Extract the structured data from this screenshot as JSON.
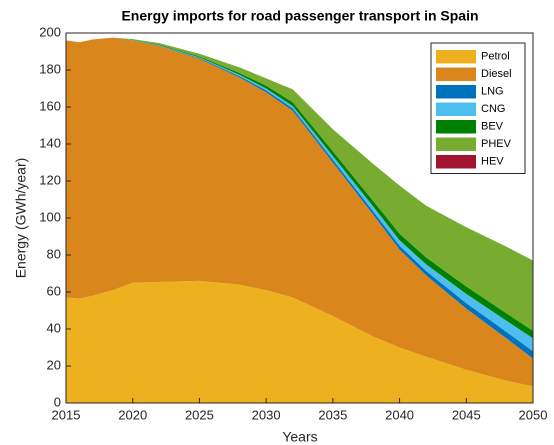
{
  "chart_data": {
    "type": "stacked_area",
    "title": "Energy imports for road passenger transport in Spain",
    "x_label": "Years",
    "y_label": "Energy (GWh/year)",
    "x": [
      2015,
      2016,
      2017,
      2018.5,
      2020,
      2022,
      2025,
      2028,
      2030,
      2032,
      2035,
      2038,
      2040,
      2042,
      2045,
      2048,
      2050
    ],
    "series": [
      {
        "name": "Petrol",
        "color": "#edb120",
        "values": [
          57,
          56.5,
          58,
          61,
          65,
          65.5,
          66,
          64,
          61,
          57,
          47,
          36,
          30,
          25,
          18,
          12,
          9
        ]
      },
      {
        "name": "Diesel",
        "color": "#d9861c",
        "values": [
          139,
          138.5,
          138.5,
          136.5,
          131,
          127.5,
          120,
          112,
          107,
          101,
          83,
          66,
          53,
          44,
          33,
          23,
          15
        ]
      },
      {
        "name": "LNG",
        "color": "#0072bd",
        "values": [
          0,
          0,
          0,
          0,
          0.1,
          0.2,
          0.4,
          0.7,
          1,
          1.2,
          1.5,
          1.8,
          2,
          2.3,
          3,
          3.5,
          4
        ]
      },
      {
        "name": "CNG",
        "color": "#4dbeee",
        "values": [
          0,
          0,
          0,
          0,
          0.1,
          0.2,
          0.4,
          0.7,
          1,
          1.3,
          2,
          2.6,
          3,
          3.6,
          5,
          6,
          7
        ]
      },
      {
        "name": "BEV",
        "color": "#008000",
        "values": [
          0,
          0,
          0,
          0,
          0.2,
          0.3,
          0.5,
          1,
          1.5,
          2,
          2.5,
          3,
          3.5,
          3.7,
          4,
          4,
          4
        ]
      },
      {
        "name": "PHEV",
        "color": "#77ac30",
        "values": [
          0,
          0,
          0,
          0,
          0.3,
          0.8,
          1.5,
          3,
          4,
          7,
          12,
          20,
          26,
          28,
          32,
          36,
          38
        ]
      },
      {
        "name": "HEV",
        "color": "#a2142f",
        "values": [
          0,
          0,
          0,
          0,
          0,
          0,
          0,
          0,
          0,
          0,
          0,
          0,
          0,
          0,
          0,
          0,
          0
        ]
      }
    ],
    "xlim": [
      2015,
      2050
    ],
    "xticks": [
      2015,
      2020,
      2025,
      2030,
      2035,
      2040,
      2045,
      2050
    ],
    "ylim": [
      0,
      200
    ],
    "yticks": [
      0,
      20,
      40,
      60,
      80,
      100,
      120,
      140,
      160,
      180,
      200
    ],
    "legend": "upper right"
  }
}
